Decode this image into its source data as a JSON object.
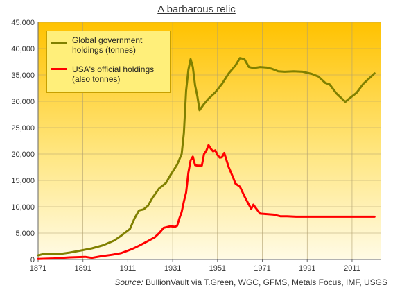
{
  "title": "A barbarous relic",
  "source_prefix": "Source:",
  "source_text": " BullionVault via T.Green,  WGC, GFMS, Metals Focus, IMF, USGS",
  "chart_data": {
    "type": "line",
    "title": "A barbarous relic",
    "xlim": [
      1871,
      2024
    ],
    "ylim": [
      0,
      45000
    ],
    "x_ticks": [
      1871,
      1891,
      1911,
      1931,
      1951,
      1971,
      1991,
      2011
    ],
    "y_ticks": [
      0,
      5000,
      10000,
      15000,
      20000,
      25000,
      30000,
      35000,
      40000,
      45000
    ],
    "y_tick_labels": [
      "0",
      "5,000",
      "10,000",
      "15,000",
      "20,000",
      "25,000",
      "30,000",
      "35,000",
      "40,000",
      "45,000"
    ],
    "grid": true,
    "legend_position": "top-left",
    "series": [
      {
        "name": "Global government holdings (tonnes)",
        "label_lines": [
          "Global government",
          "holdings (tonnes)"
        ],
        "color": "#808000",
        "points": [
          [
            1871,
            800
          ],
          [
            1873,
            1000
          ],
          [
            1880,
            1000
          ],
          [
            1885,
            1300
          ],
          [
            1890,
            1700
          ],
          [
            1895,
            2100
          ],
          [
            1900,
            2700
          ],
          [
            1905,
            3600
          ],
          [
            1908,
            4500
          ],
          [
            1912,
            5800
          ],
          [
            1914,
            7800
          ],
          [
            1916,
            9300
          ],
          [
            1918,
            9500
          ],
          [
            1920,
            10200
          ],
          [
            1922,
            11700
          ],
          [
            1925,
            13500
          ],
          [
            1928,
            14500
          ],
          [
            1930,
            16000
          ],
          [
            1933,
            18000
          ],
          [
            1935,
            20000
          ],
          [
            1936,
            24000
          ],
          [
            1937,
            32000
          ],
          [
            1938,
            36000
          ],
          [
            1939,
            38000
          ],
          [
            1940,
            36500
          ],
          [
            1941,
            33000
          ],
          [
            1942,
            31000
          ],
          [
            1943,
            28300
          ],
          [
            1945,
            29500
          ],
          [
            1947,
            30500
          ],
          [
            1950,
            31700
          ],
          [
            1953,
            33300
          ],
          [
            1956,
            35300
          ],
          [
            1959,
            36800
          ],
          [
            1961,
            38200
          ],
          [
            1963,
            38000
          ],
          [
            1965,
            36500
          ],
          [
            1967,
            36300
          ],
          [
            1970,
            36500
          ],
          [
            1973,
            36400
          ],
          [
            1975,
            36200
          ],
          [
            1978,
            35700
          ],
          [
            1981,
            35600
          ],
          [
            1985,
            35700
          ],
          [
            1989,
            35600
          ],
          [
            1993,
            35200
          ],
          [
            1996,
            34700
          ],
          [
            1999,
            33500
          ],
          [
            2001,
            33200
          ],
          [
            2004,
            31500
          ],
          [
            2008,
            29900
          ],
          [
            2010,
            30600
          ],
          [
            2013,
            31600
          ],
          [
            2016,
            33300
          ],
          [
            2019,
            34500
          ],
          [
            2021,
            35300
          ]
        ]
      },
      {
        "name": "USA's official holdings (also tonnes)",
        "label_lines": [
          "USA's official holdings",
          "(also tonnes)"
        ],
        "color": "#ff0000",
        "points": [
          [
            1871,
            100
          ],
          [
            1878,
            200
          ],
          [
            1885,
            400
          ],
          [
            1892,
            500
          ],
          [
            1895,
            300
          ],
          [
            1899,
            600
          ],
          [
            1904,
            900
          ],
          [
            1908,
            1200
          ],
          [
            1913,
            2000
          ],
          [
            1916,
            2600
          ],
          [
            1920,
            3500
          ],
          [
            1923,
            4200
          ],
          [
            1925,
            5000
          ],
          [
            1927,
            6000
          ],
          [
            1930,
            6300
          ],
          [
            1932,
            6200
          ],
          [
            1933,
            6400
          ],
          [
            1934,
            7800
          ],
          [
            1935,
            9000
          ],
          [
            1936,
            11000
          ],
          [
            1937,
            12700
          ],
          [
            1938,
            16500
          ],
          [
            1939,
            18800
          ],
          [
            1940,
            19500
          ],
          [
            1941,
            17900
          ],
          [
            1942,
            17800
          ],
          [
            1944,
            17800
          ],
          [
            1945,
            20000
          ],
          [
            1946,
            20600
          ],
          [
            1947,
            21700
          ],
          [
            1948,
            21000
          ],
          [
            1949,
            20500
          ],
          [
            1950,
            20700
          ],
          [
            1951,
            19800
          ],
          [
            1952,
            19300
          ],
          [
            1953,
            19400
          ],
          [
            1954,
            20200
          ],
          [
            1956,
            17500
          ],
          [
            1958,
            15500
          ],
          [
            1959,
            14400
          ],
          [
            1961,
            13800
          ],
          [
            1963,
            12000
          ],
          [
            1965,
            10400
          ],
          [
            1966,
            9600
          ],
          [
            1967,
            10400
          ],
          [
            1968,
            9800
          ],
          [
            1970,
            8700
          ],
          [
            1973,
            8600
          ],
          [
            1976,
            8500
          ],
          [
            1979,
            8200
          ],
          [
            1982,
            8200
          ],
          [
            1986,
            8100
          ],
          [
            2000,
            8100
          ],
          [
            2010,
            8100
          ],
          [
            2021,
            8100
          ]
        ]
      }
    ]
  }
}
